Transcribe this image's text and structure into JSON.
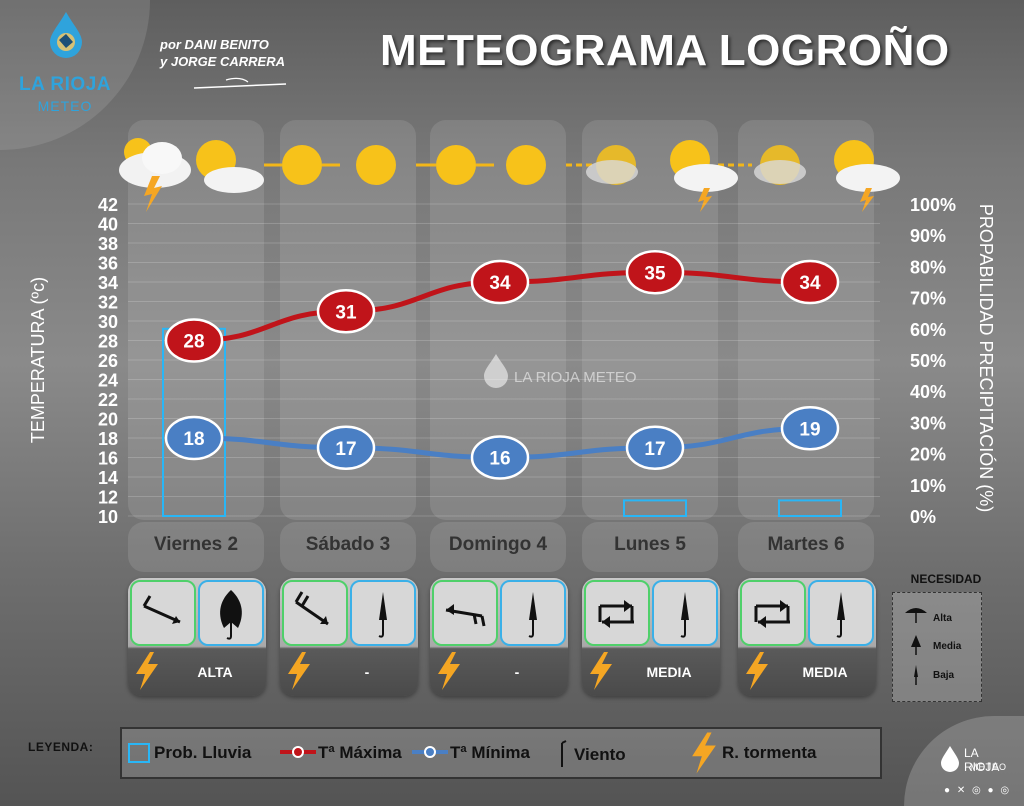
{
  "header": {
    "title": "METEOGRAMA LOGROÑO",
    "author_line1": "por DANI BENITO",
    "author_line2": "y JORGE CARRERA",
    "logo_line1": "LA RIOJA",
    "logo_line2": "METEO",
    "watermark": "LA RIOJA METEO"
  },
  "footer_brand": {
    "line1": "LA RIOJA",
    "line2": "METEO"
  },
  "chart_data": {
    "type": "line",
    "categories": [
      "Viernes 2",
      "Sábado 3",
      "Domingo 4",
      "Lunes 5",
      "Martes 6"
    ],
    "series": [
      {
        "name": "Tª Máxima",
        "values": [
          28,
          31,
          34,
          35,
          34
        ],
        "color": "#c0141a"
      },
      {
        "name": "Tª Mínima",
        "values": [
          18,
          17,
          16,
          17,
          19
        ],
        "color": "#4a7fc4"
      }
    ],
    "precipitation_probability": {
      "name": "Prob. Lluvia",
      "values": [
        60,
        0,
        0,
        5,
        5
      ],
      "color": "#29b6f6"
    },
    "ylabel": "TEMPERATURA (ºc)",
    "ylabel_right": "PROPABILIDAD PRECIPITACIÓN (%)",
    "ylim": [
      10,
      42
    ],
    "ylim_right": [
      0,
      100
    ],
    "yticks": [
      10,
      12,
      14,
      16,
      18,
      20,
      22,
      24,
      26,
      28,
      30,
      32,
      34,
      36,
      38,
      40,
      42
    ],
    "yticks_right": [
      "0%",
      "10%",
      "20%",
      "30%",
      "40%",
      "50%",
      "60%",
      "70%",
      "80%",
      "90%",
      "100%"
    ],
    "grid": true
  },
  "days": [
    {
      "sky": [
        "storm",
        "sun-cloud"
      ],
      "wind_icon": "wind-arrow-icon",
      "umbrella": "umbrella-open-icon",
      "storm_risk": true,
      "need": "ALTA"
    },
    {
      "sky": [
        "sun",
        "sun"
      ],
      "wind_icon": "wind-arrow-icon",
      "umbrella": "umbrella-closed-icon",
      "storm_risk": true,
      "need": "-"
    },
    {
      "sky": [
        "sun",
        "sun"
      ],
      "wind_icon": "wind-arrow-icon",
      "umbrella": "umbrella-closed-icon",
      "storm_risk": true,
      "need": "-"
    },
    {
      "sky": [
        "haze-sun",
        "sun-storm"
      ],
      "wind_icon": "variable-wind-icon",
      "umbrella": "umbrella-closed-icon",
      "storm_risk": true,
      "need": "MEDIA"
    },
    {
      "sky": [
        "haze-sun",
        "sun-storm"
      ],
      "wind_icon": "variable-wind-icon",
      "umbrella": "umbrella-closed-icon",
      "storm_risk": true,
      "need": "MEDIA"
    }
  ],
  "necesidad": {
    "title": "NECESIDAD",
    "items": [
      "Alta",
      "Media",
      "Baja"
    ]
  },
  "legend": {
    "title": "LEYENDA:",
    "rain": "Prob. Lluvia",
    "tmax": "Tª Máxima",
    "tmin": "Tª Mínima",
    "wind": "Viento",
    "storm": "R. tormenta"
  }
}
